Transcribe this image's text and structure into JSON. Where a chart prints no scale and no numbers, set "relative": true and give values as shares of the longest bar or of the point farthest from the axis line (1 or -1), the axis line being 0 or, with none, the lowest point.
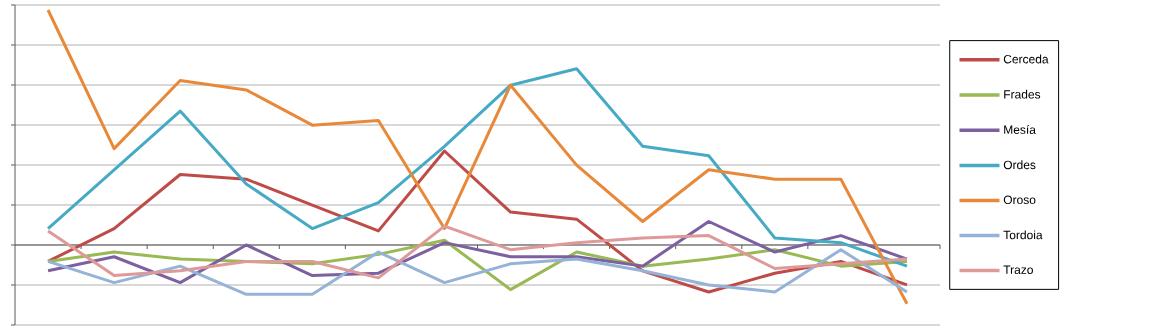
{
  "chart_data": {
    "type": "line",
    "relative": true,
    "grid": "y",
    "legend": "right",
    "marker": "none",
    "line_style": "solid",
    "categories": [
      null,
      null,
      null,
      null,
      null,
      null,
      null,
      null,
      null,
      null,
      null,
      null,
      null,
      null
    ],
    "series": [
      {
        "name": "Cerceda",
        "color": "#be4b48",
        "values": [
          -0.07,
          0.07,
          0.3,
          0.28,
          0.17,
          0.06,
          0.4,
          0.14,
          0.11,
          -0.11,
          -0.2,
          -0.12,
          -0.07,
          -0.17
        ]
      },
      {
        "name": "Frades",
        "color": "#98b954",
        "values": [
          -0.07,
          -0.03,
          -0.06,
          -0.07,
          -0.08,
          -0.04,
          0.02,
          -0.19,
          -0.03,
          -0.09,
          -0.06,
          -0.02,
          -0.09,
          -0.07
        ]
      },
      {
        "name": "Mesía",
        "color": "#7d60a0",
        "values": [
          -0.11,
          -0.05,
          -0.16,
          0.0,
          -0.13,
          -0.12,
          0.01,
          -0.05,
          -0.05,
          -0.09,
          0.1,
          -0.03,
          0.04,
          -0.06
        ]
      },
      {
        "name": "Ordes",
        "color": "#46aac5",
        "values": [
          0.07,
          0.32,
          0.57,
          0.26,
          0.07,
          0.18,
          0.42,
          0.68,
          0.75,
          0.42,
          0.38,
          0.03,
          0.01,
          -0.09
        ]
      },
      {
        "name": "Oroso",
        "color": "#e8893a",
        "values": [
          1,
          0.41,
          0.7,
          0.66,
          0.51,
          0.53,
          0.07,
          0.68,
          0.34,
          0.1,
          0.32,
          0.28,
          0.28,
          -0.25
        ]
      },
      {
        "name": "Tordoia",
        "color": "#95b3d7",
        "values": [
          -0.07,
          -0.16,
          -0.09,
          -0.21,
          -0.21,
          -0.03,
          -0.16,
          -0.08,
          -0.06,
          -0.11,
          -0.17,
          -0.2,
          -0.02,
          -0.2
        ]
      },
      {
        "name": "Trazo",
        "color": "#dd9a99",
        "values": [
          0.06,
          -0.13,
          -0.11,
          -0.07,
          -0.07,
          -0.14,
          0.08,
          -0.02,
          0.01,
          0.03,
          0.04,
          -0.1,
          -0.08,
          -0.06
        ]
      }
    ]
  }
}
